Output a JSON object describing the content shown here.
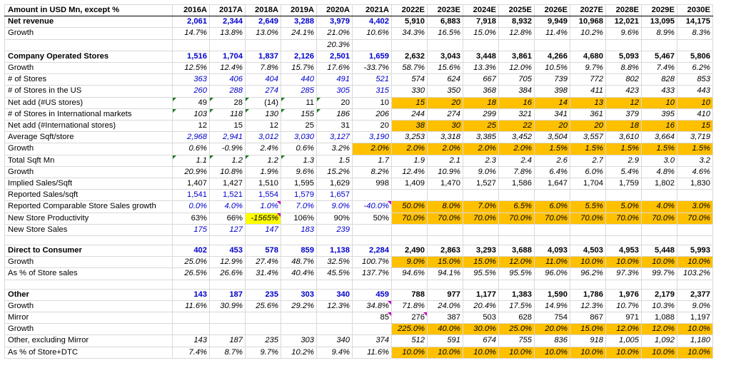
{
  "table": {
    "corner": "Amount in USD Mn, except %",
    "years": [
      "2016A",
      "2017A",
      "2018A",
      "2019A",
      "2020A",
      "2021A",
      "2022E",
      "2023E",
      "2024E",
      "2025E",
      "2026E",
      "2027E",
      "2028E",
      "2029E",
      "2030E"
    ],
    "colors": {
      "input_blue": "#0000cc",
      "highlight_orange": "#ffc000",
      "highlight_yellow": "#ffff00"
    },
    "rows": [
      {
        "label": "Net revenue",
        "bold": true,
        "values": [
          "2,061",
          "2,344",
          "2,649",
          "3,288",
          "3,979",
          "4,402",
          "5,910",
          "6,883",
          "7,918",
          "8,932",
          "9,949",
          "10,968",
          "12,021",
          "13,095",
          "14,175"
        ]
      },
      {
        "label": "Growth",
        "italic": true,
        "values": [
          "14.7%",
          "13.8%",
          "13.0%",
          "24.1%",
          "21.0%",
          "10.6%",
          "34.3%",
          "16.5%",
          "15.0%",
          "12.8%",
          "11.4%",
          "10.2%",
          "9.6%",
          "8.9%",
          "8.3%"
        ]
      },
      {
        "label": "",
        "values": [
          "",
          "",
          "",
          "",
          "20.3%",
          "",
          "",
          "",
          "",
          "",
          "",
          "",
          "",
          "",
          ""
        ]
      },
      {
        "label": "Company Operated Stores",
        "bold": true,
        "values": [
          "1,516",
          "1,704",
          "1,837",
          "2,126",
          "2,501",
          "1,659",
          "2,632",
          "3,043",
          "3,448",
          "3,861",
          "4,266",
          "4,680",
          "5,093",
          "5,467",
          "5,806"
        ]
      },
      {
        "label": "Growth",
        "values": [
          "12.5%",
          "12.4%",
          "7.8%",
          "15.7%",
          "17.6%",
          "-33.7%",
          "58.7%",
          "15.6%",
          "13.3%",
          "12.0%",
          "10.5%",
          "9.7%",
          "8.8%",
          "7.4%",
          "6.2%"
        ]
      },
      {
        "label": "# of Stores",
        "values": [
          "363",
          "406",
          "404",
          "440",
          "491",
          "521",
          "574",
          "624",
          "667",
          "705",
          "739",
          "772",
          "802",
          "828",
          "853"
        ]
      },
      {
        "label": "# of Stores in the US",
        "values": [
          "260",
          "288",
          "274",
          "285",
          "305",
          "315",
          "330",
          "350",
          "368",
          "384",
          "398",
          "411",
          "423",
          "433",
          "443"
        ]
      },
      {
        "label": "Net add (#US stores)",
        "values": [
          "49",
          "28",
          "(14)",
          "11",
          "20",
          "10",
          "15",
          "20",
          "18",
          "16",
          "14",
          "13",
          "12",
          "10",
          "10"
        ]
      },
      {
        "label": "# of Stores in International markets",
        "values": [
          "103",
          "118",
          "130",
          "155",
          "186",
          "206",
          "244",
          "274",
          "299",
          "321",
          "341",
          "361",
          "379",
          "395",
          "410"
        ]
      },
      {
        "label": "Net add (#International stores)",
        "values": [
          "12",
          "15",
          "12",
          "25",
          "31",
          "20",
          "38",
          "30",
          "25",
          "22",
          "20",
          "20",
          "18",
          "16",
          "15"
        ]
      },
      {
        "label": "Average Sqft/store",
        "values": [
          "2,968",
          "2,941",
          "3,012",
          "3,030",
          "3,127",
          "3,190",
          "3,253",
          "3,318",
          "3,385",
          "3,452",
          "3,504",
          "3,557",
          "3,610",
          "3,664",
          "3,719"
        ]
      },
      {
        "label": "Growth",
        "values": [
          "0.6%",
          "-0.9%",
          "2.4%",
          "0.6%",
          "3.2%",
          "2.0%",
          "2.0%",
          "2.0%",
          "2.0%",
          "2.0%",
          "1.5%",
          "1.5%",
          "1.5%",
          "1.5%",
          "1.5%"
        ]
      },
      {
        "label": "Total Sqft Mn",
        "values": [
          "1.1",
          "1.2",
          "1.2",
          "1.3",
          "1.5",
          "1.7",
          "1.9",
          "2.1",
          "2.3",
          "2.4",
          "2.6",
          "2.7",
          "2.9",
          "3.0",
          "3.2"
        ]
      },
      {
        "label": "Growth",
        "values": [
          "20.9%",
          "10.8%",
          "1.9%",
          "9.6%",
          "15.2%",
          "8.2%",
          "12.4%",
          "10.9%",
          "9.0%",
          "7.8%",
          "6.4%",
          "6.0%",
          "5.4%",
          "4.8%",
          "4.6%"
        ]
      },
      {
        "label": "Implied Sales/Sqft",
        "values": [
          "1,407",
          "1,427",
          "1,510",
          "1,595",
          "1,629",
          "998",
          "1,409",
          "1,470",
          "1,527",
          "1,586",
          "1,647",
          "1,704",
          "1,759",
          "1,802",
          "1,830"
        ]
      },
      {
        "label": "Reported Sales/sqft",
        "values": [
          "1,541",
          "1,521",
          "1,554",
          "1,579",
          "1,657",
          "",
          "",
          "",
          "",
          "",
          "",
          "",
          "",
          "",
          ""
        ]
      },
      {
        "label": "Reported Comparable Store Sales growth",
        "values": [
          "0.0%",
          "4.0%",
          "1.0%",
          "7.0%",
          "9.0%",
          "-40.0%",
          "50.0%",
          "8.0%",
          "7.0%",
          "6.5%",
          "6.0%",
          "5.5%",
          "5.0%",
          "4.0%",
          "3.0%"
        ]
      },
      {
        "label": "New Store Productivity",
        "values": [
          "63%",
          "66%",
          "-1565%",
          "106%",
          "90%",
          "50%",
          "70.0%",
          "70.0%",
          "70.0%",
          "70.0%",
          "70.0%",
          "70.0%",
          "70.0%",
          "70.0%",
          "70.0%"
        ]
      },
      {
        "label": "New Store Sales",
        "values": [
          "175",
          "127",
          "147",
          "183",
          "239",
          "",
          "",
          "",
          "",
          "",
          "",
          "",
          "",
          "",
          ""
        ]
      },
      {
        "label": "",
        "values": [
          "",
          "",
          "",
          "",
          "",
          "",
          "",
          "",
          "",
          "",
          "",
          "",
          "",
          "",
          ""
        ]
      },
      {
        "label": "Direct to Consumer",
        "bold": true,
        "values": [
          "402",
          "453",
          "578",
          "859",
          "1,138",
          "2,284",
          "2,490",
          "2,863",
          "3,293",
          "3,688",
          "4,093",
          "4,503",
          "4,953",
          "5,448",
          "5,993"
        ]
      },
      {
        "label": "Growth",
        "values": [
          "25.0%",
          "12.9%",
          "27.4%",
          "48.7%",
          "32.5%",
          "100.7%",
          "9.0%",
          "15.0%",
          "15.0%",
          "12.0%",
          "11.0%",
          "10.0%",
          "10.0%",
          "10.0%",
          "10.0%"
        ]
      },
      {
        "label": "As % of Store sales",
        "values": [
          "26.5%",
          "26.6%",
          "31.4%",
          "40.4%",
          "45.5%",
          "137.7%",
          "94.6%",
          "94.1%",
          "95.5%",
          "95.5%",
          "96.0%",
          "96.2%",
          "97.3%",
          "99.7%",
          "103.2%"
        ]
      },
      {
        "label": "",
        "values": [
          "",
          "",
          "",
          "",
          "",
          "",
          "",
          "",
          "",
          "",
          "",
          "",
          "",
          "",
          ""
        ]
      },
      {
        "label": "Other",
        "bold": true,
        "values": [
          "143",
          "187",
          "235",
          "303",
          "340",
          "459",
          "788",
          "977",
          "1,177",
          "1,383",
          "1,590",
          "1,786",
          "1,976",
          "2,179",
          "2,377"
        ]
      },
      {
        "label": "Growth",
        "values": [
          "11.6%",
          "30.9%",
          "25.6%",
          "29.2%",
          "12.3%",
          "34.8%",
          "71.8%",
          "24.0%",
          "20.4%",
          "17.5%",
          "14.9%",
          "12.3%",
          "10.7%",
          "10.3%",
          "9.0%"
        ]
      },
      {
        "label": "Mirror",
        "values": [
          "",
          "",
          "",
          "",
          "",
          "85",
          "276",
          "387",
          "503",
          "628",
          "754",
          "867",
          "971",
          "1,088",
          "1,197"
        ]
      },
      {
        "label": "Growth",
        "values": [
          "",
          "",
          "",
          "",
          "",
          "",
          "225.0%",
          "40.0%",
          "30.0%",
          "25.0%",
          "20.0%",
          "15.0%",
          "12.0%",
          "12.0%",
          "10.0%"
        ]
      },
      {
        "label": "Other, excluding Mirror",
        "values": [
          "143",
          "187",
          "235",
          "303",
          "340",
          "374",
          "512",
          "591",
          "674",
          "755",
          "836",
          "918",
          "1,005",
          "1,092",
          "1,180"
        ]
      },
      {
        "label": "As % of Store+DTC",
        "values": [
          "7.4%",
          "8.7%",
          "9.7%",
          "10.2%",
          "9.4%",
          "11.6%",
          "10.0%",
          "10.0%",
          "10.0%",
          "10.0%",
          "10.0%",
          "10.0%",
          "10.0%",
          "10.0%",
          "10.0%"
        ]
      }
    ]
  }
}
